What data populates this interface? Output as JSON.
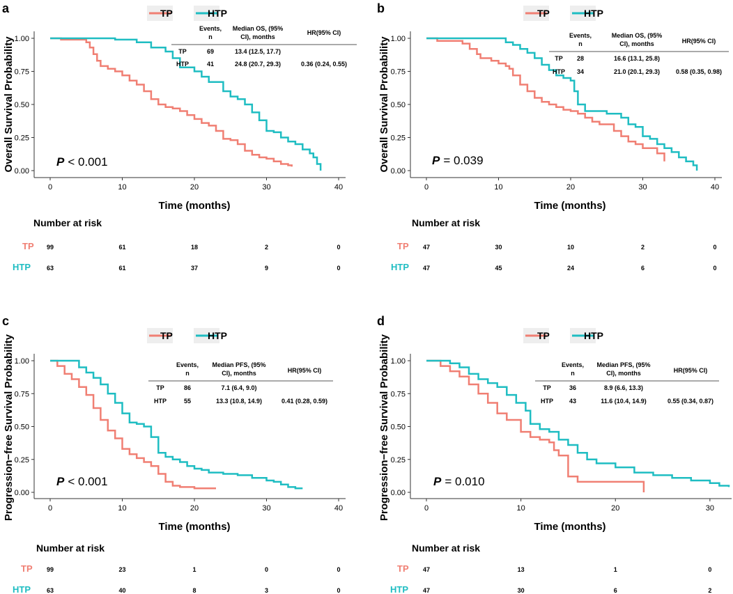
{
  "colors": {
    "tp": "#F07F73",
    "htp": "#1FBDC2",
    "axis": "#333333"
  },
  "legend": {
    "tp": "TP",
    "htp": "HTP"
  },
  "risk_title": "Number at risk",
  "xlabel": "Time (months)",
  "table_headers": {
    "events": [
      "Events,",
      "n"
    ],
    "hr": "HR(95% CI)"
  },
  "panels": [
    {
      "label": "a",
      "ylabel": "Overall Survival Probability",
      "p_prefix": "P",
      "p_text": "< 0.001",
      "median_header": [
        "Median OS, (95%",
        "CI), months"
      ],
      "table_rows": [
        {
          "group": "TP",
          "events": "69",
          "median": "13.4 (12.5, 17.7)",
          "hr": ""
        },
        {
          "group": "HTP",
          "events": "41",
          "median": "24.8 (20.7, 29.3)",
          "hr": "0.36 (0.24, 0.55)"
        }
      ],
      "risk": {
        "times": [
          "0",
          "10",
          "20",
          "30",
          "40"
        ],
        "tp": [
          "99",
          "61",
          "18",
          "2",
          "0"
        ],
        "htp": [
          "63",
          "61",
          "37",
          "9",
          "0"
        ]
      }
    },
    {
      "label": "b",
      "ylabel": "Overall Survival Probability",
      "p_prefix": "P",
      "p_text": "= 0.039",
      "median_header": [
        "Median OS, (95%",
        "CI), months"
      ],
      "table_rows": [
        {
          "group": "TP",
          "events": "28",
          "median": "16.6 (13.1, 25.8)",
          "hr": ""
        },
        {
          "group": "HTP",
          "events": "34",
          "median": "21.0 (20.1, 29.3)",
          "hr": "0.58 (0.35, 0.98)"
        }
      ],
      "risk": {
        "times": [
          "0",
          "10",
          "20",
          "30",
          "40"
        ],
        "tp": [
          "47",
          "30",
          "10",
          "2",
          "0"
        ],
        "htp": [
          "47",
          "45",
          "24",
          "6",
          "0"
        ]
      }
    },
    {
      "label": "c",
      "ylabel": "Progression−free Survival Probability",
      "p_prefix": "P",
      "p_text": "< 0.001",
      "median_header": [
        "Median PFS, (95%",
        "CI), months"
      ],
      "table_rows": [
        {
          "group": "TP",
          "events": "86",
          "median": "7.1 (6.4, 9.0)",
          "hr": ""
        },
        {
          "group": "HTP",
          "events": "55",
          "median": "13.3 (10.8, 14.9)",
          "hr": "0.41 (0.28, 0.59)"
        }
      ],
      "risk": {
        "times": [
          "0",
          "10",
          "20",
          "30",
          "40"
        ],
        "tp": [
          "99",
          "23",
          "1",
          "0",
          "0"
        ],
        "htp": [
          "63",
          "40",
          "8",
          "3",
          "0"
        ]
      }
    },
    {
      "label": "d",
      "ylabel": "Progression−free Survival Probability",
      "p_prefix": "P",
      "p_text": "= 0.010",
      "median_header": [
        "Median PFS, (95%",
        "CI), months"
      ],
      "table_rows": [
        {
          "group": "TP",
          "events": "36",
          "median": "8.9 (6.6, 13.3)",
          "hr": ""
        },
        {
          "group": "HTP",
          "events": "43",
          "median": "11.6 (10.4, 14.9)",
          "hr": "0.55 (0.34, 0.87)"
        }
      ],
      "risk": {
        "times": [
          "0",
          "10",
          "20",
          "30"
        ],
        "tp": [
          "47",
          "13",
          "1",
          "0"
        ],
        "htp": [
          "47",
          "30",
          "6",
          "2"
        ]
      }
    }
  ],
  "chart_data": [
    {
      "type": "line",
      "title": "a",
      "xlabel": "Time (months)",
      "ylabel": "Overall Survival Probability",
      "xlim": [
        0,
        40
      ],
      "ylim": [
        0,
        1
      ],
      "xticks": [
        0,
        10,
        20,
        30,
        40
      ],
      "yticks": [
        "0.00",
        "0.25",
        "0.50",
        "0.75",
        "1.00"
      ],
      "series": [
        {
          "name": "TP",
          "x": [
            0,
            1.5,
            5,
            5.5,
            6,
            6.5,
            7,
            8,
            9,
            10,
            11,
            12,
            13,
            14,
            15,
            16,
            17,
            18,
            19,
            20,
            21,
            22,
            23,
            24,
            25,
            26,
            27,
            28,
            29,
            30,
            31,
            32,
            33,
            33.5
          ],
          "y": [
            1,
            0.99,
            0.97,
            0.93,
            0.88,
            0.83,
            0.79,
            0.77,
            0.75,
            0.72,
            0.68,
            0.65,
            0.6,
            0.54,
            0.5,
            0.48,
            0.47,
            0.45,
            0.42,
            0.39,
            0.36,
            0.34,
            0.3,
            0.24,
            0.23,
            0.2,
            0.15,
            0.12,
            0.1,
            0.09,
            0.07,
            0.05,
            0.04,
            0.03
          ]
        },
        {
          "name": "HTP",
          "x": [
            0,
            6,
            9,
            12,
            14,
            16,
            17,
            18,
            20,
            21,
            22,
            24,
            25,
            26,
            27,
            28,
            29,
            30,
            31,
            32,
            33,
            34,
            35,
            36,
            36.5,
            37,
            37.5
          ],
          "y": [
            1,
            1,
            0.99,
            0.97,
            0.93,
            0.9,
            0.85,
            0.78,
            0.75,
            0.71,
            0.67,
            0.6,
            0.56,
            0.54,
            0.5,
            0.44,
            0.38,
            0.3,
            0.29,
            0.25,
            0.22,
            0.2,
            0.16,
            0.13,
            0.1,
            0.05,
            0.0
          ]
        }
      ]
    },
    {
      "type": "line",
      "title": "b",
      "xlabel": "Time (months)",
      "ylabel": "Overall Survival Probability",
      "xlim": [
        0,
        40
      ],
      "ylim": [
        0,
        1
      ],
      "xticks": [
        0,
        10,
        20,
        30,
        40
      ],
      "yticks": [
        "0.00",
        "0.25",
        "0.50",
        "0.75",
        "1.00"
      ],
      "series": [
        {
          "name": "TP",
          "x": [
            0,
            1.5,
            5,
            6,
            7,
            7.5,
            9,
            10,
            11,
            11.5,
            12,
            13,
            14,
            15,
            16,
            17,
            18,
            19,
            20,
            21,
            22,
            23,
            24,
            26,
            27,
            28,
            29,
            30,
            32,
            33
          ],
          "y": [
            1,
            0.98,
            0.96,
            0.92,
            0.88,
            0.85,
            0.83,
            0.81,
            0.79,
            0.77,
            0.72,
            0.65,
            0.6,
            0.55,
            0.52,
            0.5,
            0.48,
            0.46,
            0.45,
            0.43,
            0.4,
            0.37,
            0.35,
            0.3,
            0.26,
            0.22,
            0.2,
            0.17,
            0.13,
            0.07
          ]
        },
        {
          "name": "HTP",
          "x": [
            0,
            10,
            11,
            12,
            13,
            14,
            15,
            16,
            17,
            18,
            19,
            20,
            20.5,
            21,
            22,
            25,
            27,
            28,
            29,
            30,
            31,
            32,
            33,
            34,
            35,
            36,
            37,
            37.5
          ],
          "y": [
            1,
            1,
            0.97,
            0.95,
            0.92,
            0.89,
            0.85,
            0.8,
            0.76,
            0.72,
            0.7,
            0.68,
            0.6,
            0.5,
            0.45,
            0.43,
            0.4,
            0.35,
            0.33,
            0.26,
            0.24,
            0.2,
            0.17,
            0.14,
            0.1,
            0.07,
            0.04,
            0.0
          ]
        }
      ]
    },
    {
      "type": "line",
      "title": "c",
      "xlabel": "Time (months)",
      "ylabel": "Progression−free Survival Probability",
      "xlim": [
        0,
        40
      ],
      "ylim": [
        0,
        1
      ],
      "xticks": [
        0,
        10,
        20,
        30,
        40
      ],
      "yticks": [
        "0.00",
        "0.25",
        "0.50",
        "0.75",
        "1.00"
      ],
      "series": [
        {
          "name": "TP",
          "x": [
            0,
            1,
            2,
            3,
            4,
            5,
            6,
            7,
            8,
            9,
            10,
            11,
            12,
            13,
            14,
            15,
            16,
            17,
            18,
            20,
            22,
            23
          ],
          "y": [
            1,
            0.96,
            0.9,
            0.86,
            0.8,
            0.74,
            0.64,
            0.55,
            0.47,
            0.41,
            0.33,
            0.29,
            0.26,
            0.23,
            0.2,
            0.14,
            0.08,
            0.05,
            0.04,
            0.03,
            0.03,
            0.03
          ]
        },
        {
          "name": "HTP",
          "x": [
            0,
            3,
            4,
            5,
            6,
            7,
            8,
            9,
            10,
            11,
            12,
            13,
            14,
            15,
            16,
            17,
            18,
            19,
            20,
            21,
            22,
            24,
            26,
            28,
            30,
            31,
            32,
            33,
            34,
            35
          ],
          "y": [
            1,
            1,
            0.95,
            0.91,
            0.87,
            0.82,
            0.75,
            0.68,
            0.6,
            0.53,
            0.52,
            0.5,
            0.42,
            0.3,
            0.27,
            0.25,
            0.23,
            0.2,
            0.18,
            0.17,
            0.15,
            0.14,
            0.13,
            0.11,
            0.09,
            0.08,
            0.06,
            0.04,
            0.03,
            0.03
          ]
        }
      ]
    },
    {
      "type": "line",
      "title": "d",
      "xlabel": "Time (months)",
      "ylabel": "Progression−free Survival Probability",
      "xlim": [
        0,
        32
      ],
      "ylim": [
        0,
        1
      ],
      "xticks": [
        0,
        10,
        20,
        30
      ],
      "yticks": [
        "0.00",
        "0.25",
        "0.50",
        "0.75",
        "1.00"
      ],
      "series": [
        {
          "name": "TP",
          "x": [
            0,
            1.5,
            2.5,
            3.5,
            4.5,
            5.5,
            6.5,
            7.5,
            8.5,
            10,
            11,
            12,
            13,
            13.5,
            14,
            15,
            16,
            18,
            20,
            22,
            23
          ],
          "y": [
            1,
            0.96,
            0.92,
            0.88,
            0.82,
            0.75,
            0.68,
            0.6,
            0.55,
            0.46,
            0.42,
            0.4,
            0.38,
            0.32,
            0.28,
            0.12,
            0.08,
            0.08,
            0.08,
            0.08,
            0.0
          ]
        },
        {
          "name": "HTP",
          "x": [
            0,
            2.5,
            3.5,
            4.5,
            5.5,
            6.5,
            7.5,
            8.5,
            9.5,
            10.5,
            11,
            12,
            13,
            14,
            15,
            16,
            17,
            18,
            20,
            22,
            24,
            26,
            28,
            30,
            31,
            32
          ],
          "y": [
            1,
            0.98,
            0.95,
            0.9,
            0.86,
            0.83,
            0.8,
            0.74,
            0.68,
            0.62,
            0.52,
            0.48,
            0.46,
            0.4,
            0.36,
            0.3,
            0.25,
            0.22,
            0.19,
            0.15,
            0.13,
            0.11,
            0.09,
            0.07,
            0.05,
            0.04
          ]
        }
      ]
    }
  ]
}
